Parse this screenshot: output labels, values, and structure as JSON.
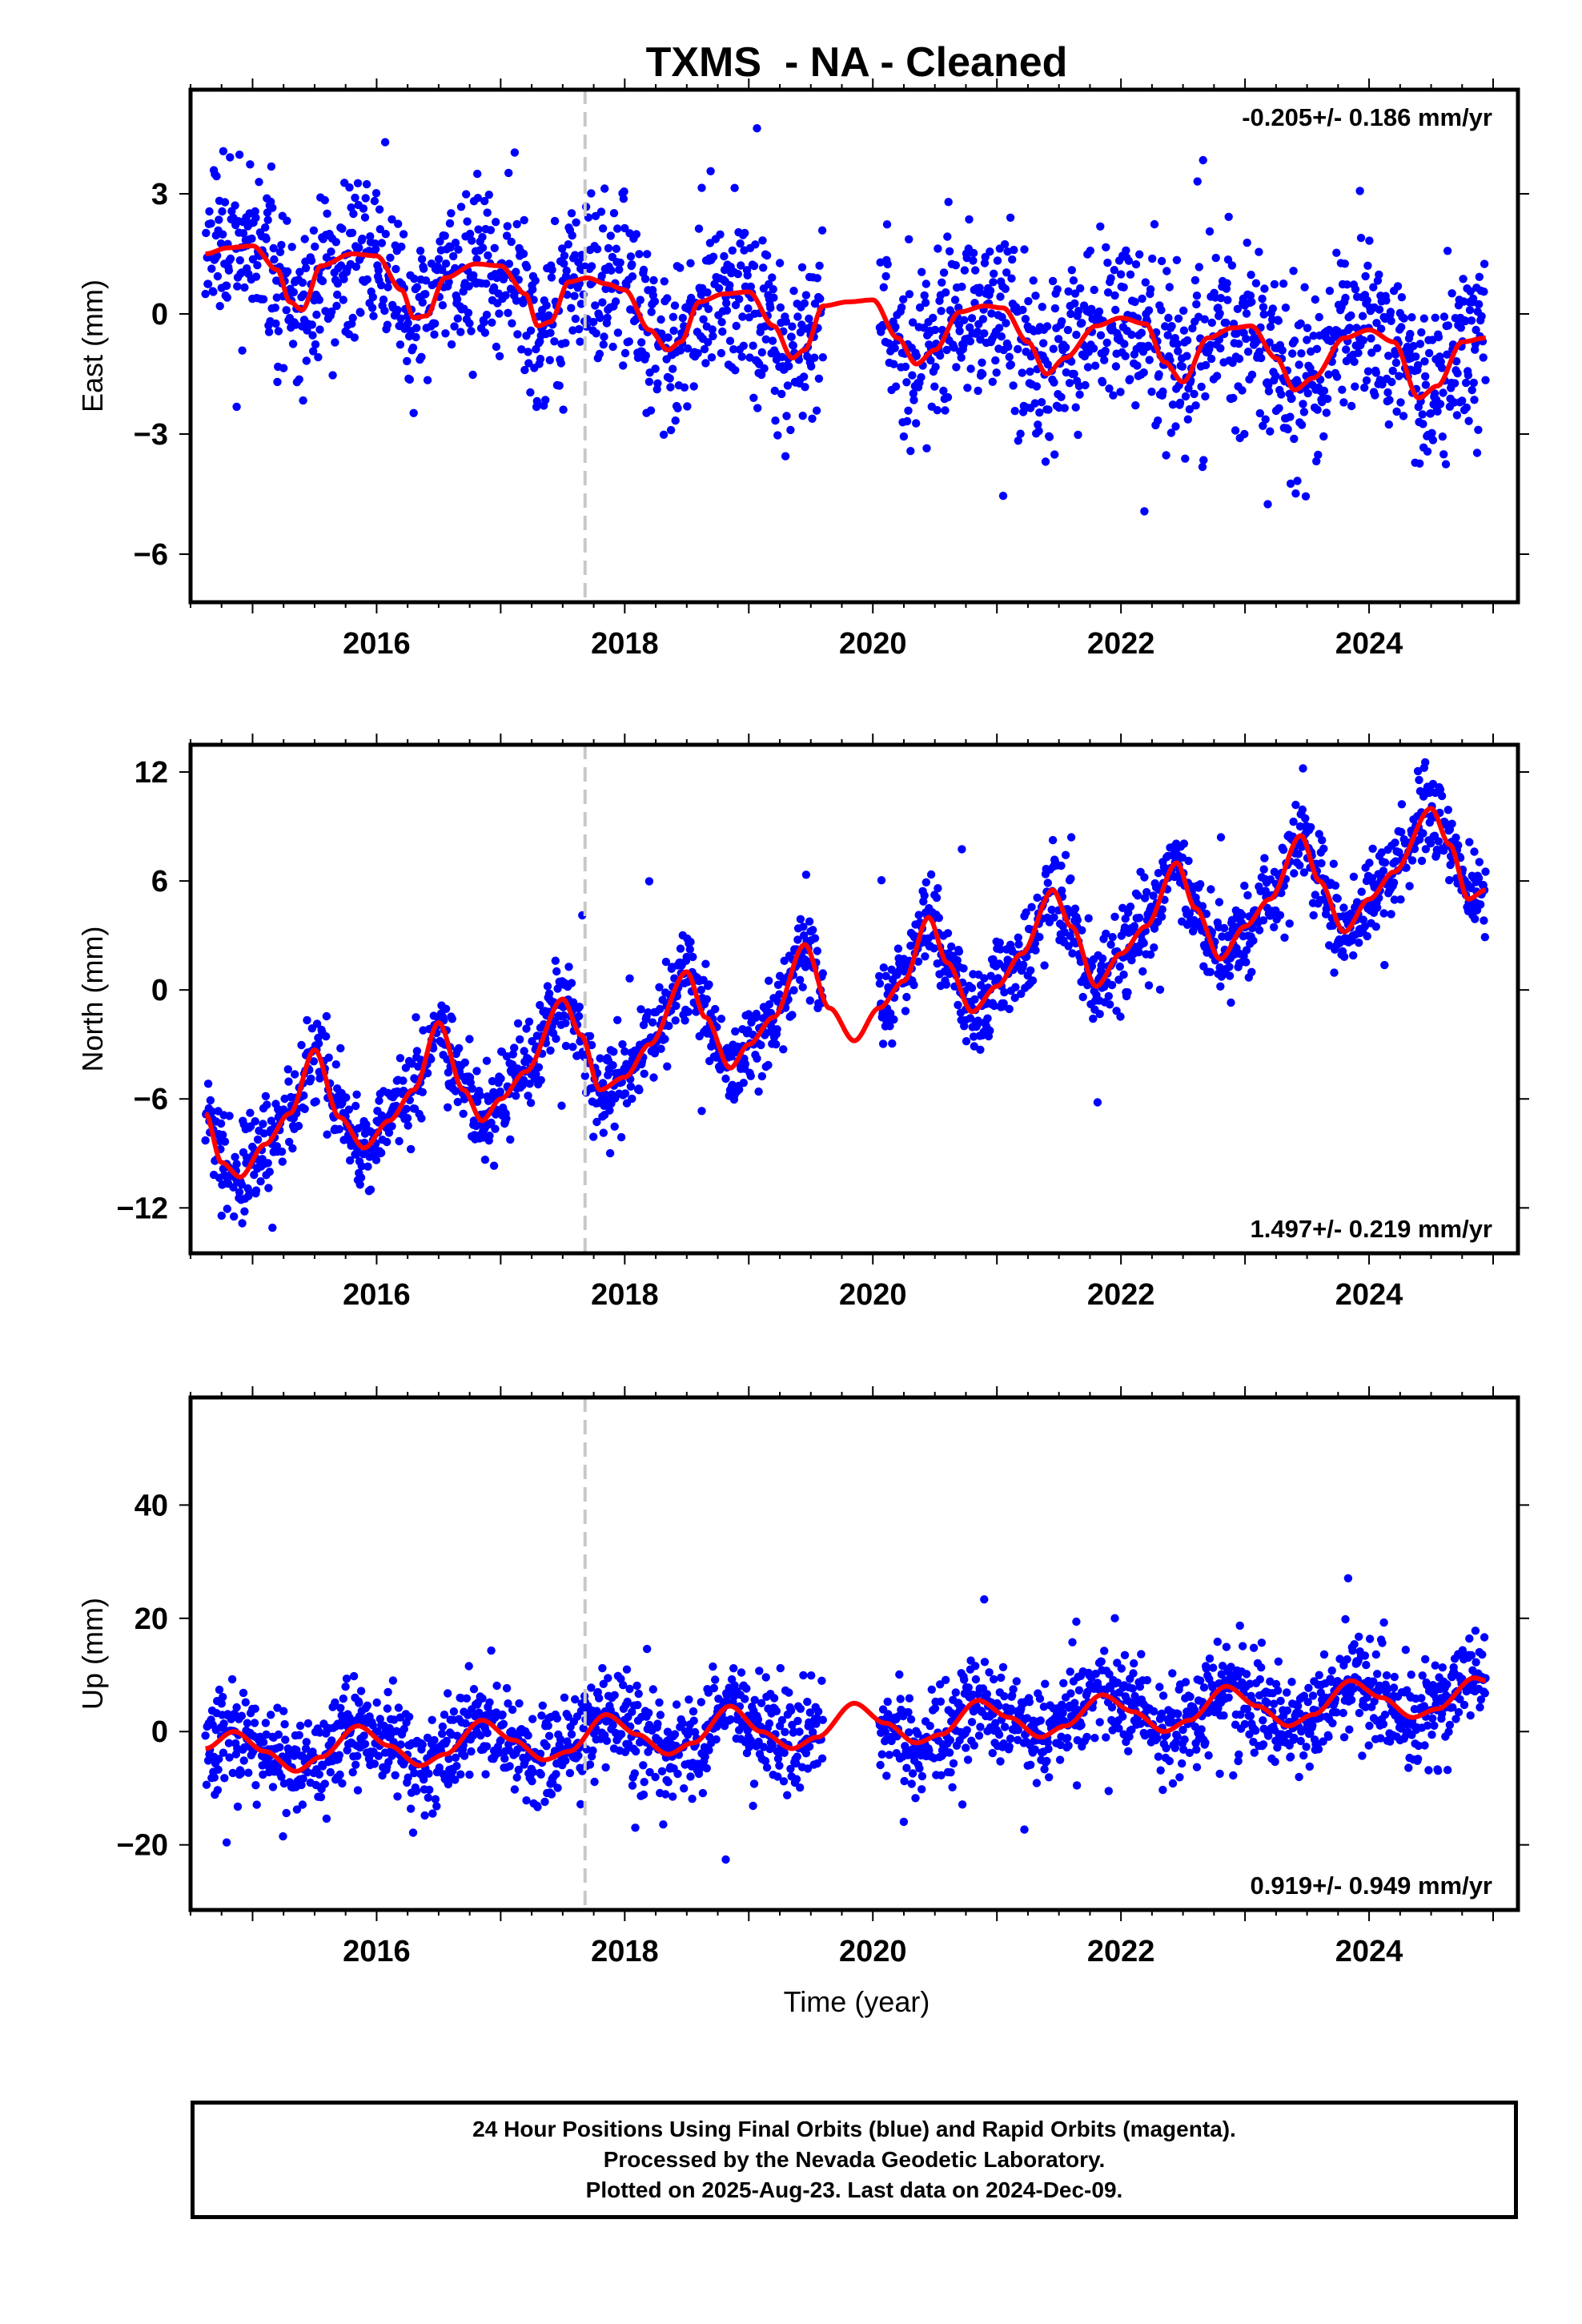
{
  "title": "TXMS  - NA - Cleaned",
  "xlabel": "Time (year)",
  "footer": {
    "line1": "24 Hour Positions Using Final Orbits (blue) and Rapid Orbits (magenta).",
    "line2": "Processed by the Nevada Geodetic Laboratory.",
    "line3": "Plotted on 2025-Aug-23. Last data on 2024-Dec-09."
  },
  "colors": {
    "points": "#0000ff",
    "model": "#ff0000",
    "event_line": "#c8c8c8",
    "frame": "#000000"
  },
  "chart_data": [
    {
      "type": "scatter",
      "name": "east",
      "ylabel": "East (mm)",
      "rate_label": "-0.205+/- 0.186 mm/yr",
      "rate_label_position": "top-right",
      "xlim": [
        2014.5,
        2025.2
      ],
      "ylim": [
        -7.2,
        5.6
      ],
      "xticks": [
        2016,
        2018,
        2020,
        2022,
        2024
      ],
      "yticks": [
        3,
        0,
        -3,
        -6
      ],
      "ytick_labels": [
        "3",
        "0",
        "−3",
        "−6"
      ],
      "event_x": 2017.68,
      "data_gap": [
        2019.6,
        2020.05
      ],
      "start": 2014.62,
      "end": 2024.94,
      "model": {
        "x": [
          2014.62,
          2014.8,
          2015.0,
          2015.2,
          2015.3,
          2015.4,
          2015.55,
          2015.8,
          2016.0,
          2016.2,
          2016.3,
          2016.4,
          2016.55,
          2016.8,
          2017.0,
          2017.2,
          2017.3,
          2017.4,
          2017.55,
          2017.7,
          2017.85,
          2018.0,
          2018.2,
          2018.35,
          2018.45,
          2018.6,
          2018.8,
          2019.0,
          2019.2,
          2019.35,
          2019.45,
          2019.6,
          2019.8,
          2020.0,
          2020.2,
          2020.35,
          2020.5,
          2020.7,
          2020.9,
          2021.05,
          2021.25,
          2021.4,
          2021.55,
          2021.8,
          2022.0,
          2022.2,
          2022.35,
          2022.5,
          2022.7,
          2022.9,
          2023.05,
          2023.25,
          2023.4,
          2023.55,
          2023.8,
          2024.0,
          2024.2,
          2024.4,
          2024.55,
          2024.75,
          2024.94
        ],
        "y": [
          1.5,
          1.65,
          1.7,
          1.1,
          0.3,
          0.1,
          1.2,
          1.5,
          1.45,
          0.6,
          -0.1,
          -0.05,
          0.9,
          1.25,
          1.2,
          0.5,
          -0.3,
          -0.2,
          0.8,
          0.9,
          0.75,
          0.6,
          -0.4,
          -0.9,
          -0.7,
          0.3,
          0.5,
          0.55,
          -0.3,
          -1.1,
          -0.9,
          0.2,
          0.3,
          0.35,
          -0.6,
          -1.25,
          -0.9,
          0.05,
          0.2,
          0.15,
          -0.7,
          -1.5,
          -1.1,
          -0.3,
          -0.1,
          -0.25,
          -1.2,
          -1.7,
          -0.6,
          -0.35,
          -0.3,
          -1.1,
          -1.9,
          -1.6,
          -0.6,
          -0.4,
          -0.7,
          -2.1,
          -1.8,
          -0.7,
          -0.6
        ]
      },
      "scatter": 1.05,
      "outliers": 2.6,
      "seed": 11
    },
    {
      "type": "scatter",
      "name": "north",
      "ylabel": "North (mm)",
      "rate_label": "1.497+/- 0.219 mm/yr",
      "rate_label_position": "bottom-right",
      "xlim": [
        2014.5,
        2025.2
      ],
      "ylim": [
        -14.5,
        13.5
      ],
      "xticks": [
        2016,
        2018,
        2020,
        2022,
        2024
      ],
      "yticks": [
        12,
        6,
        0,
        -6,
        -12
      ],
      "ytick_labels": [
        "12",
        "6",
        "0",
        "−6",
        "−12"
      ],
      "event_x": 2017.68,
      "data_gap": [
        2019.6,
        2020.05
      ],
      "start": 2014.62,
      "end": 2024.94,
      "model": {
        "x": [
          2014.62,
          2014.75,
          2014.9,
          2015.1,
          2015.3,
          2015.5,
          2015.7,
          2015.9,
          2016.1,
          2016.3,
          2016.5,
          2016.7,
          2016.85,
          2017.0,
          2017.2,
          2017.5,
          2017.65,
          2017.8,
          2018.0,
          2018.2,
          2018.5,
          2018.65,
          2018.85,
          2019.0,
          2019.2,
          2019.45,
          2019.65,
          2019.85,
          2020.05,
          2020.25,
          2020.45,
          2020.6,
          2020.8,
          2021.0,
          2021.2,
          2021.45,
          2021.6,
          2021.8,
          2022.0,
          2022.2,
          2022.45,
          2022.6,
          2022.8,
          2023.0,
          2023.2,
          2023.45,
          2023.6,
          2023.8,
          2024.0,
          2024.2,
          2024.5,
          2024.65,
          2024.8,
          2024.94
        ],
        "y": [
          -6.8,
          -9.5,
          -10.3,
          -8.5,
          -6.8,
          -3.3,
          -7.0,
          -8.7,
          -7.2,
          -5.5,
          -1.8,
          -5.5,
          -7.2,
          -6.0,
          -4.5,
          -0.5,
          -2.5,
          -5.5,
          -4.8,
          -3.0,
          1.0,
          -1.5,
          -4.3,
          -3.0,
          -1.5,
          2.5,
          -1.0,
          -2.8,
          -1.0,
          0.5,
          4.0,
          1.5,
          -1.2,
          0.2,
          2.0,
          5.5,
          3.5,
          0.2,
          2.0,
          3.5,
          7.0,
          4.5,
          1.7,
          3.5,
          5.0,
          8.5,
          6.0,
          3.2,
          5.0,
          6.5,
          10.0,
          8.0,
          5.0,
          5.5
        ]
      },
      "scatter": 1.15,
      "outliers": 3.5,
      "seed": 23
    },
    {
      "type": "scatter",
      "name": "up",
      "ylabel": "Up (mm)",
      "rate_label": "0.919+/- 0.949 mm/yr",
      "rate_label_position": "bottom-right",
      "xlim": [
        2014.5,
        2025.2
      ],
      "ylim": [
        -31.5,
        59
      ],
      "xticks": [
        2016,
        2018,
        2020,
        2022,
        2024
      ],
      "yticks": [
        40,
        20,
        0,
        -20
      ],
      "ytick_labels": [
        "40",
        "20",
        "0",
        "−20"
      ],
      "event_x": 2017.68,
      "data_gap": [
        2019.6,
        2020.05
      ],
      "start": 2014.62,
      "end": 2024.94,
      "model": {
        "x": [
          2014.62,
          2014.85,
          2015.1,
          2015.35,
          2015.55,
          2015.85,
          2016.1,
          2016.35,
          2016.55,
          2016.85,
          2017.1,
          2017.35,
          2017.55,
          2017.85,
          2018.1,
          2018.35,
          2018.55,
          2018.85,
          2019.1,
          2019.35,
          2019.55,
          2019.85,
          2020.1,
          2020.35,
          2020.55,
          2020.85,
          2021.1,
          2021.35,
          2021.55,
          2021.85,
          2022.1,
          2022.35,
          2022.55,
          2022.85,
          2023.1,
          2023.35,
          2023.55,
          2023.85,
          2024.1,
          2024.35,
          2024.55,
          2024.85,
          2024.94
        ],
        "y": [
          -3.0,
          0.0,
          -3.5,
          -7.0,
          -4.5,
          1.0,
          -2.5,
          -6.0,
          -4.0,
          2.0,
          -1.5,
          -5.0,
          -3.5,
          3.0,
          -0.5,
          -4.0,
          -2.0,
          4.5,
          0.0,
          -3.0,
          -1.0,
          5.0,
          1.5,
          -2.0,
          -0.5,
          5.5,
          2.5,
          -1.0,
          1.0,
          6.5,
          3.5,
          0.0,
          2.0,
          8.0,
          4.5,
          1.0,
          3.0,
          9.0,
          6.0,
          2.5,
          4.0,
          9.5,
          9.0
        ]
      },
      "scatter": 4.2,
      "outliers": 10.0,
      "seed": 37
    }
  ]
}
